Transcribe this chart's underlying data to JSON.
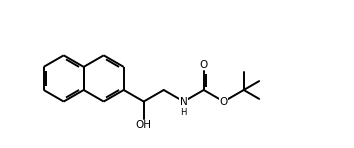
{
  "bg_color": "#ffffff",
  "bond_color": "#000000",
  "bond_lw": 1.4,
  "text_color": "#000000",
  "font_size": 7.5,
  "fig_w": 3.54,
  "fig_h": 1.48,
  "dpi": 100,
  "xlim": [
    0.0,
    7.2
  ],
  "ylim": [
    0.5,
    3.8
  ]
}
